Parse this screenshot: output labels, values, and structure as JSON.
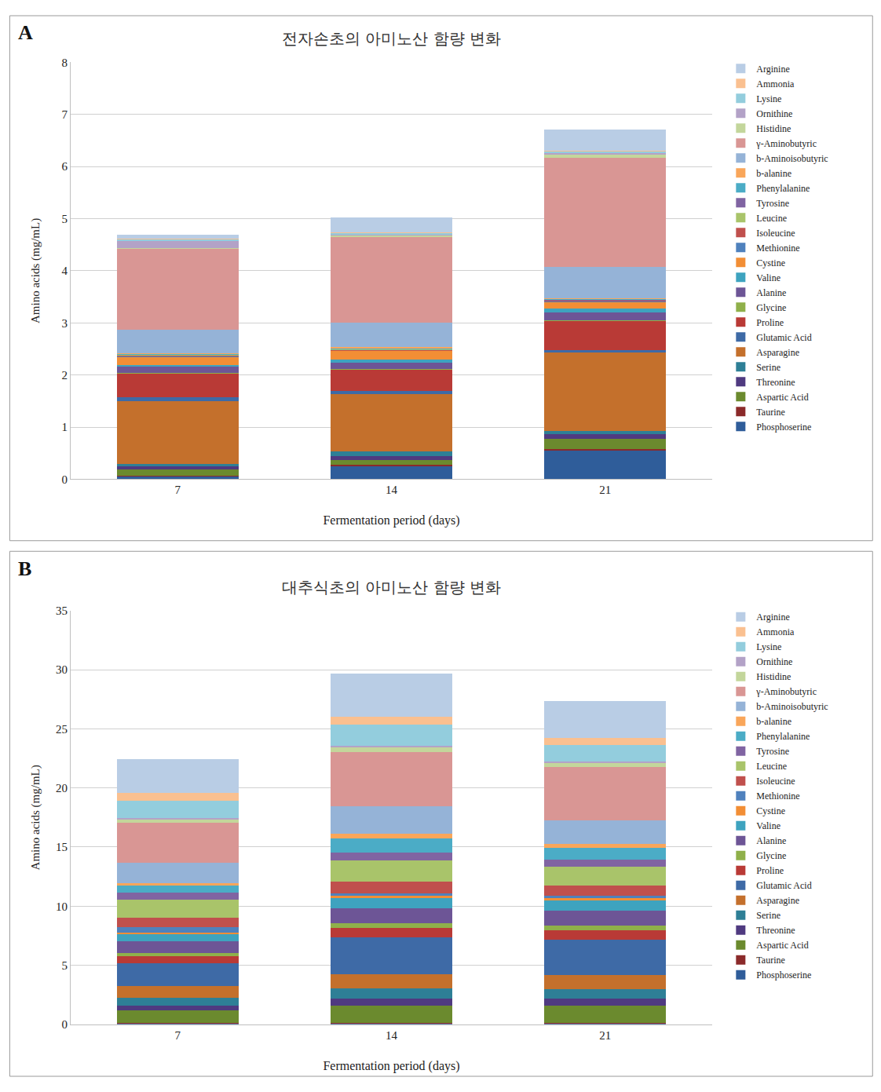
{
  "chart_data": [
    {
      "type": "bar",
      "stacked": true,
      "grid": true,
      "legend": "right",
      "annotations": [
        "A"
      ],
      "title": "전자손초의 아미노산 함량 변화",
      "x_label": "Fermentation period (days)",
      "y_label": "Amino acids (mg/mL)",
      "categories": [
        "7",
        "14",
        "21"
      ],
      "ylim": [
        0,
        8
      ],
      "yticks": [
        0,
        1,
        2,
        3,
        4,
        5,
        6,
        7,
        8
      ],
      "series": [
        {
          "name": "Phosphoserine",
          "color": "#2f5d9a",
          "values": [
            0.05,
            0.25,
            0.55
          ]
        },
        {
          "name": "Taurine",
          "color": "#8b2a2a",
          "values": [
            0.02,
            0.02,
            0.03
          ]
        },
        {
          "name": "Aspartic Acid",
          "color": "#6b8a2e",
          "values": [
            0.12,
            0.1,
            0.2
          ]
        },
        {
          "name": "Threonine",
          "color": "#4f3a80",
          "values": [
            0.05,
            0.08,
            0.08
          ]
        },
        {
          "name": "Serine",
          "color": "#2e7f96",
          "values": [
            0.05,
            0.08,
            0.07
          ]
        },
        {
          "name": "Asparagine",
          "color": "#c4702c",
          "values": [
            1.2,
            1.1,
            1.5
          ]
        },
        {
          "name": "Glutamic Acid",
          "color": "#3e6aa6",
          "values": [
            0.08,
            0.07,
            0.05
          ]
        },
        {
          "name": "Proline",
          "color": "#b93a36",
          "values": [
            0.45,
            0.4,
            0.55
          ]
        },
        {
          "name": "Glycine",
          "color": "#8fb04a",
          "values": [
            0.02,
            0.02,
            0.02
          ]
        },
        {
          "name": "Alanine",
          "color": "#6d5596",
          "values": [
            0.12,
            0.12,
            0.15
          ]
        },
        {
          "name": "Valine",
          "color": "#3ea3bf",
          "values": [
            0.03,
            0.05,
            0.07
          ]
        },
        {
          "name": "Cystine",
          "color": "#f28e35",
          "values": [
            0.15,
            0.17,
            0.13
          ]
        },
        {
          "name": "Methionine",
          "color": "#4f81bd",
          "values": [
            0.02,
            0.01,
            0.01
          ]
        },
        {
          "name": "Isoleucine",
          "color": "#c0504d",
          "values": [
            0.01,
            0.01,
            0.01
          ]
        },
        {
          "name": "Leucine",
          "color": "#a9c46a",
          "values": [
            0.01,
            0.01,
            0.01
          ]
        },
        {
          "name": "Tyrosine",
          "color": "#8064a2",
          "values": [
            0.01,
            0.01,
            0.01
          ]
        },
        {
          "name": "Phenylalanine",
          "color": "#4bacc6",
          "values": [
            0.01,
            0.01,
            0.01
          ]
        },
        {
          "name": "b-alanine",
          "color": "#f9a65a",
          "values": [
            0.02,
            0.02,
            0.02
          ]
        },
        {
          "name": "b-Aminoisobutyric",
          "color": "#95b3d7",
          "values": [
            0.45,
            0.47,
            0.6
          ]
        },
        {
          "name": "γ-Aminobutyric",
          "color": "#d99694",
          "values": [
            1.55,
            1.65,
            2.1
          ]
        },
        {
          "name": "Histidine",
          "color": "#c3d69b",
          "values": [
            0.02,
            0.02,
            0.06
          ]
        },
        {
          "name": "Ornithine",
          "color": "#b3a2c7",
          "values": [
            0.13,
            0.03,
            0.03
          ]
        },
        {
          "name": "Lysine",
          "color": "#93cddd",
          "values": [
            0.03,
            0.02,
            0.03
          ]
        },
        {
          "name": "Ammonia",
          "color": "#fac090",
          "values": [
            0.01,
            0.01,
            0.02
          ]
        },
        {
          "name": "Arginine",
          "color": "#b9cde5",
          "values": [
            0.08,
            0.3,
            0.4
          ]
        }
      ]
    },
    {
      "type": "bar",
      "stacked": true,
      "grid": true,
      "legend": "right",
      "annotations": [
        "B"
      ],
      "title": "대추식초의 아미노산 함량 변화",
      "x_label": "Fermentation period (days)",
      "y_label": "Amino acids (mg/mL)",
      "categories": [
        "7",
        "14",
        "21"
      ],
      "ylim": [
        0,
        35
      ],
      "yticks": [
        0,
        5,
        10,
        15,
        20,
        25,
        30,
        35
      ],
      "series": [
        {
          "name": "Phosphoserine",
          "color": "#2f5d9a",
          "values": [
            0.1,
            0.1,
            0.1
          ]
        },
        {
          "name": "Taurine",
          "color": "#8b2a2a",
          "values": [
            0.05,
            0.05,
            0.05
          ]
        },
        {
          "name": "Aspartic Acid",
          "color": "#6b8a2e",
          "values": [
            1.0,
            1.4,
            1.4
          ]
        },
        {
          "name": "Threonine",
          "color": "#4f3a80",
          "values": [
            0.4,
            0.6,
            0.6
          ]
        },
        {
          "name": "Serine",
          "color": "#2e7f96",
          "values": [
            0.7,
            0.9,
            0.8
          ]
        },
        {
          "name": "Asparagine",
          "color": "#c4702c",
          "values": [
            1.0,
            1.2,
            1.2
          ]
        },
        {
          "name": "Glutamic Acid",
          "color": "#3e6aa6",
          "values": [
            1.9,
            3.1,
            3.0
          ]
        },
        {
          "name": "Proline",
          "color": "#b93a36",
          "values": [
            0.6,
            0.8,
            0.8
          ]
        },
        {
          "name": "Glycine",
          "color": "#8fb04a",
          "values": [
            0.3,
            0.4,
            0.4
          ]
        },
        {
          "name": "Alanine",
          "color": "#6d5596",
          "values": [
            1.0,
            1.3,
            1.3
          ]
        },
        {
          "name": "Valine",
          "color": "#3ea3bf",
          "values": [
            0.6,
            0.9,
            0.9
          ]
        },
        {
          "name": "Cystine",
          "color": "#f28e35",
          "values": [
            0.1,
            0.1,
            0.1
          ]
        },
        {
          "name": "Methionine",
          "color": "#4f81bd",
          "values": [
            0.5,
            0.2,
            0.2
          ]
        },
        {
          "name": "Isoleucine",
          "color": "#c0504d",
          "values": [
            0.8,
            1.0,
            0.9
          ]
        },
        {
          "name": "Leucine",
          "color": "#a9c46a",
          "values": [
            1.5,
            1.8,
            1.6
          ]
        },
        {
          "name": "Tyrosine",
          "color": "#8064a2",
          "values": [
            0.6,
            0.7,
            0.6
          ]
        },
        {
          "name": "Phenylalanine",
          "color": "#4bacc6",
          "values": [
            0.6,
            1.2,
            1.0
          ]
        },
        {
          "name": "b-alanine",
          "color": "#f9a65a",
          "values": [
            0.2,
            0.4,
            0.3
          ]
        },
        {
          "name": "b-Aminoisobutyric",
          "color": "#95b3d7",
          "values": [
            1.7,
            2.3,
            2.0
          ]
        },
        {
          "name": "γ-Aminobutyric",
          "color": "#d99694",
          "values": [
            3.4,
            4.6,
            4.5
          ]
        },
        {
          "name": "Histidine",
          "color": "#c3d69b",
          "values": [
            0.3,
            0.4,
            0.4
          ]
        },
        {
          "name": "Ornithine",
          "color": "#b3a2c7",
          "values": [
            0.1,
            0.1,
            0.1
          ]
        },
        {
          "name": "Lysine",
          "color": "#93cddd",
          "values": [
            1.5,
            1.8,
            1.4
          ]
        },
        {
          "name": "Ammonia",
          "color": "#fac090",
          "values": [
            0.6,
            0.7,
            0.6
          ]
        },
        {
          "name": "Arginine",
          "color": "#b9cde5",
          "values": [
            2.9,
            3.6,
            3.1
          ]
        }
      ]
    }
  ]
}
